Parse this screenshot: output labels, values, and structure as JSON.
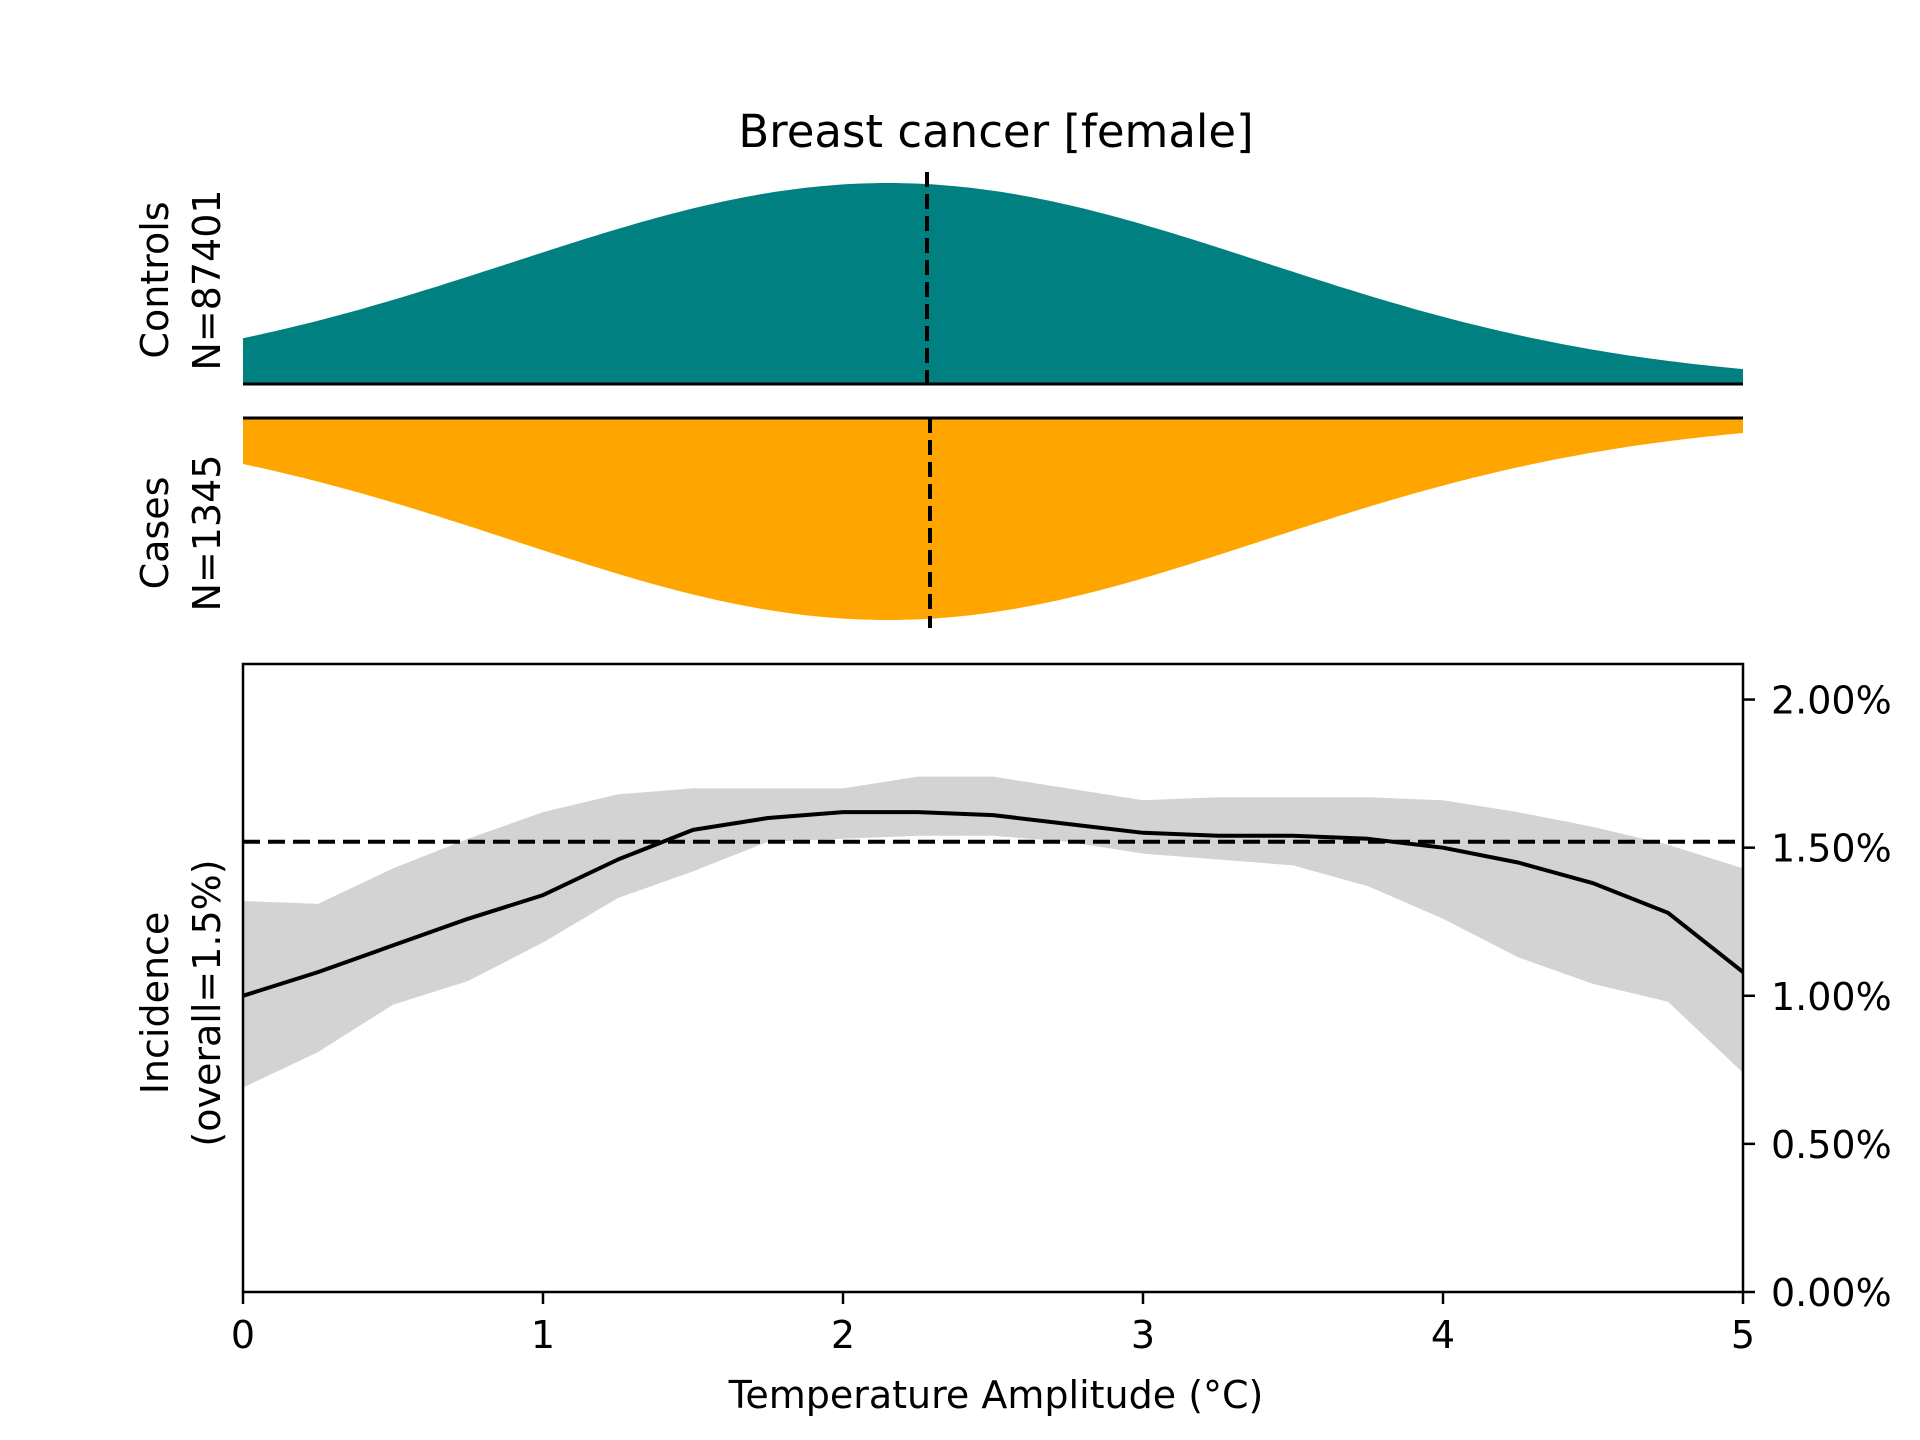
{
  "title": "Breast cancer [female]",
  "controls": {
    "label": "Controls",
    "n_label": "N=87401",
    "color": "#008080",
    "median_x": 2.28
  },
  "cases": {
    "label": "Cases",
    "n_label": "N=1345",
    "color": "#FFA500",
    "median_x": 2.29
  },
  "chart_data": {
    "type": "line",
    "title": "Breast cancer [female]",
    "xlabel": "Temperature Amplitude (°C)",
    "ylabel_line1": "Incidence",
    "ylabel_line2": "(overall=1.5%)",
    "xlim": [
      0,
      5
    ],
    "ylim": [
      0,
      0.0212
    ],
    "x_ticks": [
      0,
      1,
      2,
      3,
      4,
      5
    ],
    "x_tick_labels": [
      "0",
      "1",
      "2",
      "3",
      "4",
      "5"
    ],
    "y_ticks": [
      0,
      0.005,
      0.01,
      0.015,
      0.02
    ],
    "y_tick_labels": [
      "0.00%",
      "0.50%",
      "1.00%",
      "1.50%",
      "2.00%"
    ],
    "y_axis_side": "right",
    "overall_incidence": 0.0152,
    "band_color": "#d3d3d3",
    "series": [
      {
        "x": [
          0,
          0.25,
          0.5,
          0.75,
          1.0,
          1.25,
          1.5,
          1.75,
          2.0,
          2.25,
          2.5,
          2.75,
          3.0,
          3.25,
          3.5,
          3.75,
          4.0,
          4.25,
          4.5,
          4.75,
          5.0
        ],
        "values": [
          0.01,
          0.0108,
          0.0117,
          0.0126,
          0.0134,
          0.0146,
          0.0156,
          0.016,
          0.0162,
          0.0162,
          0.0161,
          0.0158,
          0.0155,
          0.0154,
          0.0154,
          0.0153,
          0.015,
          0.0145,
          0.0138,
          0.0128,
          0.0108
        ],
        "lower": [
          0.0069,
          0.0081,
          0.0097,
          0.0105,
          0.0118,
          0.0133,
          0.0142,
          0.0152,
          0.0153,
          0.0154,
          0.0154,
          0.0152,
          0.0148,
          0.0146,
          0.0144,
          0.0137,
          0.0126,
          0.0113,
          0.0104,
          0.0098,
          0.0074
        ],
        "upper": [
          0.0132,
          0.0131,
          0.0143,
          0.0153,
          0.0162,
          0.0168,
          0.017,
          0.017,
          0.017,
          0.0174,
          0.0174,
          0.017,
          0.0166,
          0.0167,
          0.0167,
          0.0167,
          0.0166,
          0.0162,
          0.0157,
          0.0151,
          0.0143
        ]
      }
    ]
  }
}
